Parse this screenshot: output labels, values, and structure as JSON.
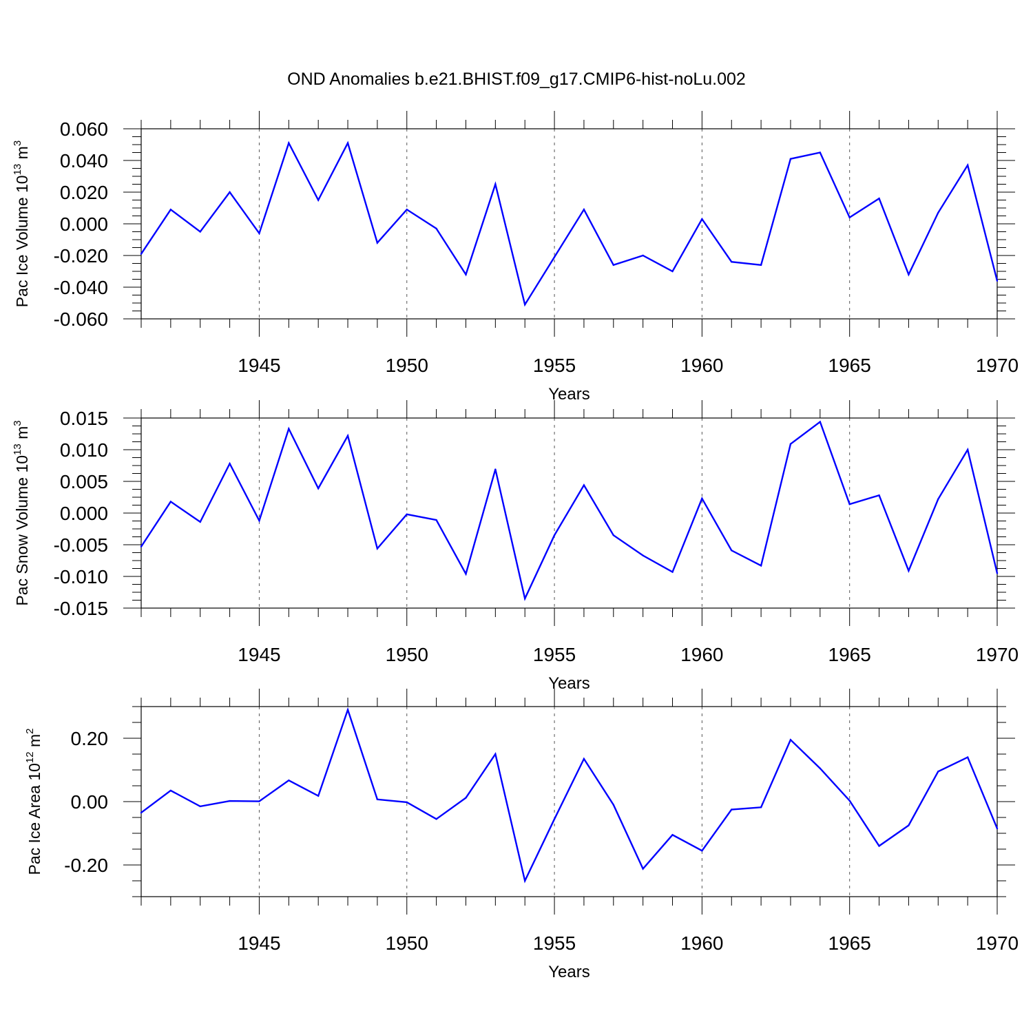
{
  "title": "OND Anomalies b.e21.BHIST.f09_g17.CMIP6-hist-noLu.002",
  "chart_data": [
    {
      "type": "line",
      "xlabel": "Years",
      "ylabel": "Pac Ice Volume 10",
      "ylabel_sup": "13",
      "ylabel_unit": " m",
      "ylabel_unit_sup": "3",
      "ylim": [
        -0.06,
        0.06
      ],
      "xlim": [
        1941,
        1970
      ],
      "xticks": [
        1945,
        1950,
        1955,
        1960,
        1965,
        1970
      ],
      "yticks": [
        -0.06,
        -0.04,
        -0.02,
        0.0,
        0.02,
        0.04,
        0.06
      ],
      "ytick_labels": [
        "-0.060",
        "-0.040",
        "-0.020",
        "0.000",
        "0.020",
        "0.040",
        "0.060"
      ],
      "color": "#0000ff",
      "grid": "dashed vertical at major x ticks",
      "x": [
        1941,
        1942,
        1943,
        1944,
        1945,
        1946,
        1947,
        1948,
        1949,
        1950,
        1951,
        1952,
        1953,
        1954,
        1955,
        1956,
        1957,
        1958,
        1959,
        1960,
        1961,
        1962,
        1963,
        1964,
        1965,
        1966,
        1967,
        1968,
        1969,
        1970
      ],
      "values": [
        -0.019,
        0.009,
        -0.005,
        0.02,
        -0.006,
        0.051,
        0.015,
        0.051,
        -0.012,
        0.009,
        -0.003,
        -0.032,
        0.025,
        -0.051,
        -0.021,
        0.009,
        -0.026,
        -0.02,
        -0.03,
        0.003,
        -0.024,
        -0.026,
        0.041,
        0.045,
        0.004,
        0.016,
        -0.032,
        0.007,
        0.037,
        -0.036
      ]
    },
    {
      "type": "line",
      "xlabel": "Years",
      "ylabel": "Pac Snow Volume 10",
      "ylabel_sup": "13",
      "ylabel_unit": " m",
      "ylabel_unit_sup": "3",
      "ylim": [
        -0.015,
        0.015
      ],
      "xlim": [
        1941,
        1970
      ],
      "xticks": [
        1945,
        1950,
        1955,
        1960,
        1965,
        1970
      ],
      "yticks": [
        -0.015,
        -0.01,
        -0.005,
        0.0,
        0.005,
        0.01,
        0.015
      ],
      "ytick_labels": [
        "-0.015",
        "-0.010",
        "-0.005",
        "0.000",
        "0.005",
        "0.010",
        "0.015"
      ],
      "color": "#0000ff",
      "grid": "dashed vertical at major x ticks",
      "x": [
        1941,
        1942,
        1943,
        1944,
        1945,
        1946,
        1947,
        1948,
        1949,
        1950,
        1951,
        1952,
        1953,
        1954,
        1955,
        1956,
        1957,
        1958,
        1959,
        1960,
        1961,
        1962,
        1963,
        1964,
        1965,
        1966,
        1967,
        1968,
        1969,
        1970
      ],
      "values": [
        -0.0053,
        0.0018,
        -0.0014,
        0.0078,
        -0.0012,
        0.0133,
        0.0039,
        0.0122,
        -0.0056,
        -0.0002,
        -0.0011,
        -0.0096,
        0.0069,
        -0.0135,
        -0.0035,
        0.0044,
        -0.0035,
        -0.0067,
        -0.0093,
        0.0023,
        -0.0059,
        -0.0083,
        0.0109,
        0.0144,
        0.0014,
        0.0028,
        -0.0091,
        0.0022,
        0.01,
        -0.0095
      ]
    },
    {
      "type": "line",
      "xlabel": "Years",
      "ylabel": "Pac Ice Area 10",
      "ylabel_sup": "12",
      "ylabel_unit": " m",
      "ylabel_unit_sup": "2",
      "ylim": [
        -0.3,
        0.3
      ],
      "xlim": [
        1941,
        1970
      ],
      "xticks": [
        1945,
        1950,
        1955,
        1960,
        1965,
        1970
      ],
      "yticks": [
        -0.2,
        0.0,
        0.2
      ],
      "ytick_labels": [
        "-0.20",
        "0.00",
        "0.20"
      ],
      "color": "#0000ff",
      "grid": "dashed vertical at major x ticks",
      "x": [
        1941,
        1942,
        1943,
        1944,
        1945,
        1946,
        1947,
        1948,
        1949,
        1950,
        1951,
        1952,
        1953,
        1954,
        1955,
        1956,
        1957,
        1958,
        1959,
        1960,
        1961,
        1962,
        1963,
        1964,
        1965,
        1966,
        1967,
        1968,
        1969,
        1970
      ],
      "values": [
        -0.035,
        0.035,
        -0.015,
        0.002,
        0.001,
        0.067,
        0.018,
        0.29,
        0.007,
        -0.002,
        -0.055,
        0.012,
        0.15,
        -0.25,
        -0.055,
        0.135,
        -0.01,
        -0.212,
        -0.105,
        -0.155,
        -0.025,
        -0.018,
        0.195,
        0.105,
        0.003,
        -0.14,
        -0.075,
        0.095,
        0.14,
        -0.085
      ]
    }
  ]
}
